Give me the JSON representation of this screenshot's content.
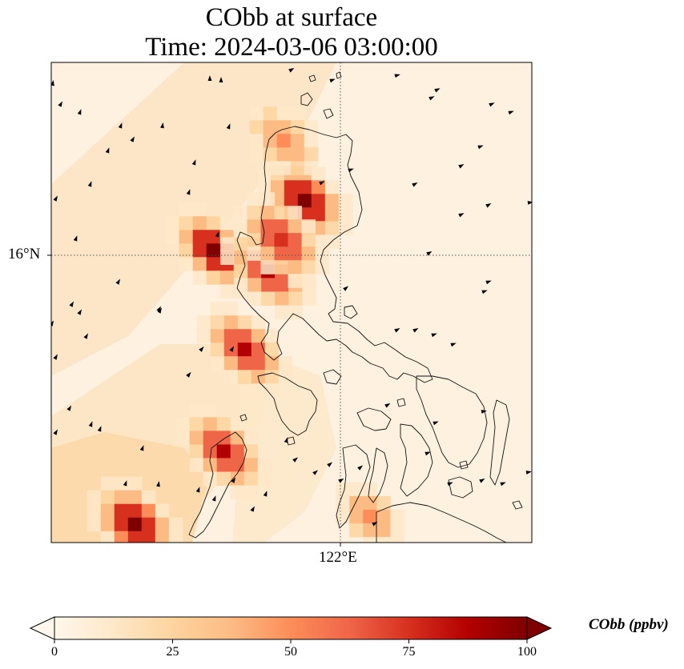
{
  "title": {
    "line1": "CObb at surface",
    "line2": "Time: 2024-03-06 03:00:00"
  },
  "map": {
    "variable": "CObb",
    "latitude_label": "16°N",
    "longitude_label": "122°E",
    "lat_range": [
      10.7,
      19.9
    ],
    "lon_range": [
      116.5,
      125.7
    ],
    "gridline_lat": 16,
    "gridline_lon": 122
  },
  "colorbar": {
    "label": "CObb (ppbv)",
    "ticks": [
      "0",
      "25",
      "50",
      "75",
      "100"
    ],
    "tick_values": [
      0,
      25,
      50,
      75,
      100
    ],
    "range": [
      0,
      100
    ],
    "extend": "both",
    "colormap": "OrRd",
    "colors": [
      "#fff7ec",
      "#fee8c8",
      "#fdd49e",
      "#fdbb84",
      "#fc8d59",
      "#ef6548",
      "#d7301f",
      "#b30000",
      "#7f0000"
    ]
  },
  "plumes": [
    {
      "name": "north-luzon",
      "lat": 17.25,
      "lon": 121.35,
      "peak_ppbv": 100
    },
    {
      "name": "north-tip",
      "lat": 18.4,
      "lon": 120.95,
      "peak_ppbv": 55
    },
    {
      "name": "central-luzon-west",
      "lat": 16.3,
      "lon": 119.6,
      "peak_ppbv": 95
    },
    {
      "name": "central-luzon-east",
      "lat": 15.9,
      "lon": 120.65,
      "peak_ppbv": 90
    },
    {
      "name": "central-luzon-south",
      "lat": 16.5,
      "lon": 120.9,
      "peak_ppbv": 80
    },
    {
      "name": "manila-region",
      "lat": 14.4,
      "lon": 120.2,
      "peak_ppbv": 85
    },
    {
      "name": "mindoro-strait",
      "lat": 12.45,
      "lon": 119.8,
      "peak_ppbv": 90
    },
    {
      "name": "southwest-corner",
      "lat": 11.05,
      "lon": 118.1,
      "peak_ppbv": 100
    },
    {
      "name": "south-visayas",
      "lat": 11.2,
      "lon": 122.6,
      "peak_ppbv": 45
    }
  ]
}
